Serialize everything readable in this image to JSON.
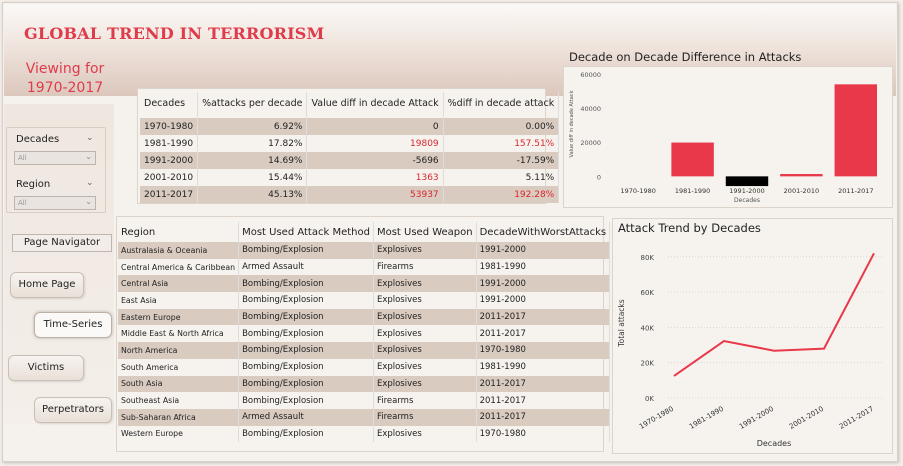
{
  "header": {
    "title": "GLOBAL TREND IN TERRORISM",
    "viewing_line1": "Viewing for",
    "viewing_line2": "1970-2017"
  },
  "slicers": {
    "decades": {
      "label": "Decades",
      "value": "All"
    },
    "region": {
      "label": "Region",
      "value": "All"
    }
  },
  "nav": {
    "title": "Page Navigator",
    "buttons": [
      {
        "label": "Home Page"
      },
      {
        "label": "Time-Series",
        "active": true
      },
      {
        "label": "Victims"
      },
      {
        "label": "Perpetrators"
      }
    ]
  },
  "decade_table": {
    "headers": [
      "Decades",
      "%attacks per decade",
      "Value diff in decade Attack",
      "%diff in decade attack"
    ],
    "rows": [
      [
        "1970-1980",
        "6.92%",
        "0",
        "0.00%"
      ],
      [
        "1981-1990",
        "17.82%",
        "19809",
        "157.51%"
      ],
      [
        "1991-2000",
        "14.69%",
        "-5696",
        "-17.59%"
      ],
      [
        "2001-2010",
        "15.44%",
        "1363",
        "5.11%"
      ],
      [
        "2011-2017",
        "45.13%",
        "53937",
        "192.28%"
      ]
    ]
  },
  "region_table": {
    "headers": [
      "Region",
      "Most Used Attack Method",
      "Most Used Weapon",
      "DecadeWithWorstAttacks"
    ],
    "rows": [
      [
        "Australasia & Oceania",
        "Bombing/Explosion",
        "Explosives",
        "1991-2000"
      ],
      [
        "Central America & Caribbean",
        "Armed Assault",
        "Firearms",
        "1981-1990"
      ],
      [
        "Central Asia",
        "Bombing/Explosion",
        "Explosives",
        "1991-2000"
      ],
      [
        "East Asia",
        "Bombing/Explosion",
        "Explosives",
        "1991-2000"
      ],
      [
        "Eastern Europe",
        "Bombing/Explosion",
        "Explosives",
        "2011-2017"
      ],
      [
        "Middle East & North Africa",
        "Bombing/Explosion",
        "Explosives",
        "2011-2017"
      ],
      [
        "North America",
        "Bombing/Explosion",
        "Explosives",
        "1970-1980"
      ],
      [
        "South America",
        "Bombing/Explosion",
        "Explosives",
        "1981-1990"
      ],
      [
        "South Asia",
        "Bombing/Explosion",
        "Explosives",
        "2011-2017"
      ],
      [
        "Southeast Asia",
        "Bombing/Explosion",
        "Firearms",
        "2011-2017"
      ],
      [
        "Sub-Saharan Africa",
        "Armed Assault",
        "Firearms",
        "2011-2017"
      ],
      [
        "Western Europe",
        "Bombing/Explosion",
        "Explosives",
        "1970-1980"
      ]
    ]
  },
  "chart_data": [
    {
      "type": "bar",
      "title": "Decade on Decade Difference in Attacks",
      "xlabel": "Decades",
      "ylabel": "Value diff in decade Attack",
      "categories": [
        "1970-1980",
        "1981-1990",
        "1991-2000",
        "2001-2010",
        "2011-2017"
      ],
      "values": [
        0,
        19809,
        -5696,
        1363,
        53937
      ],
      "yticks": [
        0,
        20000,
        40000,
        60000
      ],
      "ytick_labels": [
        "0",
        "20000",
        "40000",
        "60000"
      ],
      "ylim": [
        -8000,
        60000
      ],
      "colors": {
        "positive": "#e8384a",
        "negative": "#000000"
      }
    },
    {
      "type": "line",
      "title": "Attack Trend by Decades",
      "xlabel": "Decades",
      "ylabel": "Total attacks",
      "categories": [
        "1970-1980",
        "1981-1990",
        "1991-2000",
        "2001-2010",
        "2011-2017"
      ],
      "values": [
        12500,
        32300,
        26800,
        28000,
        82000
      ],
      "yticks": [
        0,
        20000,
        40000,
        60000,
        80000
      ],
      "ytick_labels": [
        "0K",
        "20K",
        "40K",
        "60K",
        "80K"
      ],
      "ylim": [
        0,
        85000
      ],
      "color": "#e8384a"
    }
  ]
}
